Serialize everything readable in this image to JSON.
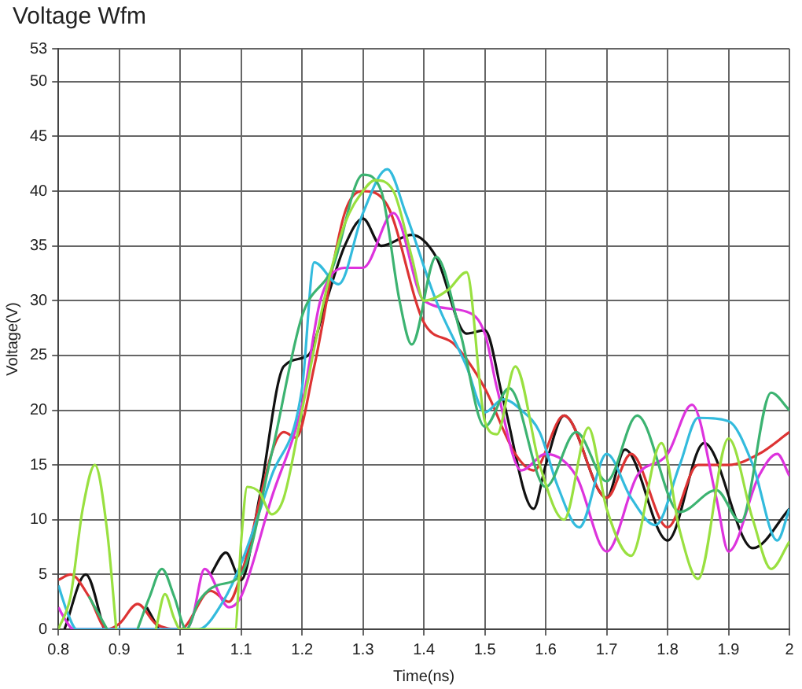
{
  "chart_data": {
    "type": "line",
    "title": "Voltage Wfm",
    "xlabel": "Time(ns)",
    "ylabel": "Voltage(V)",
    "xlim": [
      0.8,
      2
    ],
    "xticks": [
      0.8,
      0.9,
      1,
      1.1,
      1.2,
      1.3,
      1.4,
      1.5,
      1.6,
      1.7,
      1.8,
      1.9,
      2
    ],
    "ylim": [
      0,
      53
    ],
    "yticks": [
      0,
      5,
      10,
      15,
      20,
      25,
      30,
      35,
      40,
      45,
      50,
      53
    ],
    "grid": true,
    "legend": false,
    "marker": "none",
    "line_style": "solid",
    "series": [
      {
        "color": "#99e040",
        "x": [
          0.8,
          0.82,
          0.84,
          0.86,
          0.88,
          0.895,
          0.9,
          0.95,
          0.96,
          0.975,
          0.99,
          1.0,
          1.09,
          1.1,
          1.11,
          1.13,
          1.15,
          1.17,
          1.2,
          1.24,
          1.27,
          1.3,
          1.32,
          1.35,
          1.38,
          1.4,
          1.44,
          1.47,
          1.5,
          1.52,
          1.55,
          1.59,
          1.63,
          1.67,
          1.7,
          1.74,
          1.79,
          1.82,
          1.85,
          1.9,
          1.94,
          1.97,
          2
        ],
        "values": [
          0,
          3,
          11,
          15,
          9,
          0,
          null,
          null,
          0,
          3.2,
          1,
          0,
          0,
          8,
          13,
          12.5,
          10.5,
          12,
          20,
          31,
          37,
          40,
          41,
          40,
          34,
          30,
          31,
          32.6,
          19,
          17.8,
          24,
          15,
          10,
          18.4,
          11,
          6.7,
          17,
          9,
          4.6,
          17.4,
          10,
          5.5,
          8
        ]
      },
      {
        "color": "#3cb371",
        "x": [
          0.85,
          0.88,
          0.9,
          0.93,
          0.95,
          0.97,
          0.99,
          1.01,
          1.03,
          1.06,
          1.1,
          1.15,
          1.2,
          1.25,
          1.3,
          1.33,
          1.36,
          1.38,
          1.42,
          1.46,
          1.5,
          1.54,
          1.6,
          1.65,
          1.7,
          1.75,
          1.82,
          1.88,
          1.92,
          1.97,
          2
        ],
        "values": [
          3,
          0,
          null,
          0,
          3,
          5.5,
          3,
          0,
          2.5,
          4,
          5,
          16,
          28.6,
          33,
          41.5,
          40,
          30,
          26,
          34,
          27,
          18.5,
          22,
          13,
          18,
          13.5,
          19.5,
          10.7,
          12.7,
          9.8,
          21.6,
          20
        ]
      },
      {
        "color": "#33bbdd",
        "x": [
          0.8,
          0.815,
          0.83,
          1.03,
          1.07,
          1.1,
          1.15,
          1.2,
          1.22,
          1.26,
          1.3,
          1.34,
          1.37,
          1.42,
          1.47,
          1.5,
          1.53,
          1.56,
          1.59,
          1.62,
          1.655,
          1.7,
          1.74,
          1.78,
          1.82,
          1.85,
          1.9,
          1.94,
          1.98,
          2
        ],
        "values": [
          4,
          1.5,
          0,
          0,
          2.5,
          6,
          14,
          22,
          33.5,
          31.5,
          38,
          42,
          38,
          30,
          24,
          19.8,
          21,
          20,
          18,
          13,
          9.3,
          16,
          12,
          9.5,
          15,
          19.3,
          19,
          15,
          8.1,
          11
        ]
      },
      {
        "color": "#dd33dd",
        "x": [
          0.8,
          0.81,
          0.825,
          1.01,
          1.02,
          1.04,
          1.08,
          1.1,
          1.15,
          1.2,
          1.23,
          1.27,
          1.3,
          1.35,
          1.4,
          1.47,
          1.5,
          1.52,
          1.56,
          1.6,
          1.65,
          1.7,
          1.75,
          1.8,
          1.84,
          1.88,
          1.9,
          1.95,
          1.98,
          2
        ],
        "values": [
          2,
          1,
          0,
          0,
          1,
          5.5,
          2,
          3,
          12,
          20.5,
          30,
          33,
          33,
          38,
          30,
          29,
          27,
          22,
          14.5,
          16,
          14,
          7.1,
          14,
          16,
          20.5,
          12,
          7.1,
          14,
          16,
          14
        ]
      },
      {
        "color": "#dd3333",
        "x": [
          0.8,
          0.82,
          0.85,
          0.88,
          0.9,
          0.93,
          0.96,
          1.0,
          1.05,
          1.08,
          1.1,
          1.17,
          1.19,
          1.22,
          1.27,
          1.3,
          1.34,
          1.4,
          1.45,
          1.5,
          1.55,
          1.58,
          1.63,
          1.7,
          1.74,
          1.8,
          1.85,
          1.9,
          1.95,
          2
        ],
        "values": [
          4.5,
          5,
          3,
          0,
          0.5,
          2.3,
          0.5,
          0,
          3.5,
          2.5,
          5,
          18,
          17.5,
          24,
          38,
          40,
          38.7,
          28,
          26,
          22,
          16,
          14.5,
          19.5,
          12,
          16,
          9.3,
          15,
          15,
          16,
          18
        ]
      },
      {
        "color": "#111111",
        "x": [
          0.81,
          0.845,
          0.875,
          0.93,
          0.945,
          0.965,
          1.03,
          1.05,
          1.075,
          1.1,
          1.13,
          1.17,
          1.21,
          1.24,
          1.27,
          1.3,
          1.33,
          1.38,
          1.42,
          1.47,
          1.5,
          1.53,
          1.58,
          1.6,
          1.63,
          1.7,
          1.73,
          1.8,
          1.86,
          1.94,
          2
        ],
        "values": [
          0,
          5,
          0,
          null,
          2,
          0,
          null,
          5,
          7,
          4.5,
          12,
          24,
          25,
          30,
          35,
          37.5,
          35,
          36,
          34,
          27,
          27.3,
          21,
          11,
          15,
          19.5,
          12,
          16.4,
          8.1,
          17,
          7.4,
          11
        ]
      }
    ]
  }
}
